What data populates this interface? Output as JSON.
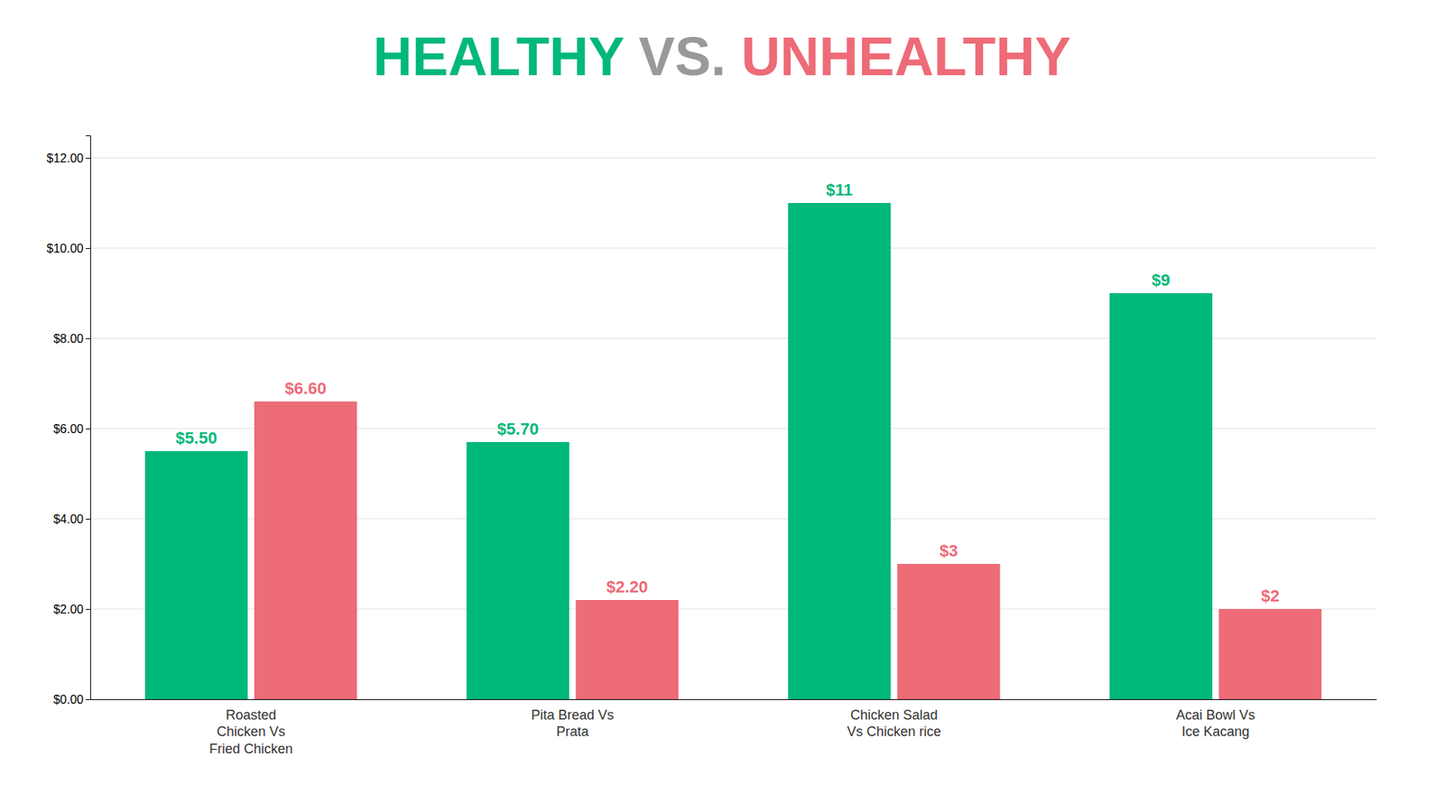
{
  "chart_data": {
    "type": "bar",
    "title": "HEALTHY VS. UNHEALTHY",
    "categories": [
      "Roasted\nChicken Vs\nFried Chicken",
      "Pita Bread Vs\nPrata",
      "Chicken Salad\nVs Chicken rice",
      "Acai Bowl Vs\nIce Kacang"
    ],
    "series": [
      {
        "color": "#00B87A",
        "values": [
          5.5,
          5.7,
          11.0,
          9.0
        ],
        "value_labels": [
          "$5.50",
          "$5.70",
          "$11",
          "$9"
        ]
      },
      {
        "color": "#EE6B78",
        "values": [
          6.6,
          2.2,
          3.0,
          2.0
        ],
        "value_labels": [
          "$6.60",
          "$2.20",
          "$3",
          "$2"
        ]
      }
    ],
    "ylim": [
      0,
      12.5
    ],
    "yticks": [
      {
        "value": 0.0,
        "label": "$0.00"
      },
      {
        "value": 2.0,
        "label": "$2.00"
      },
      {
        "value": 4.0,
        "label": "$4.00"
      },
      {
        "value": 6.0,
        "label": "$6.00"
      },
      {
        "value": 8.0,
        "label": "$8.00"
      },
      {
        "value": 10.0,
        "label": "$10.00"
      },
      {
        "value": 12.0,
        "label": "$12.00"
      }
    ],
    "grid": true,
    "data_labels": true
  }
}
